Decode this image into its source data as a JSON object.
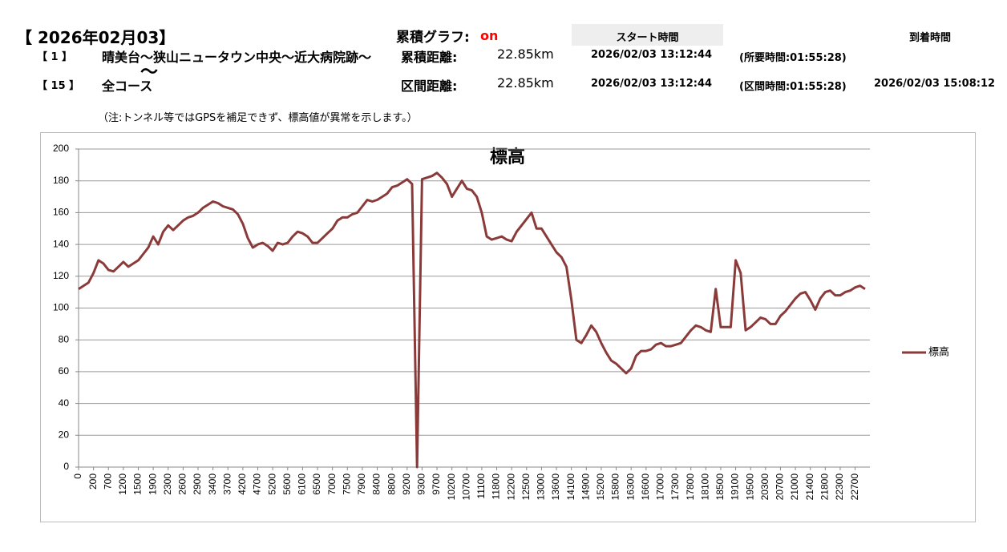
{
  "header": {
    "date": "【 2026年02月03】",
    "cumulative_graph_label": "累積グラフ:",
    "cumulative_graph_value": "on",
    "start_time_header": "スタート時間",
    "arrival_time_header": "到着時間"
  },
  "rows": [
    {
      "index": "【 1 】",
      "route": "晴美台～狭山ニュータウン中央～近大病院跡～",
      "distance_label": "累積距離:",
      "distance": "22.85km",
      "start": "2026/02/03 13:12:44",
      "duration": "(所要時間:01:55:28)"
    },
    {
      "index": "【 15 】",
      "route": "全コース",
      "distance_label": "区間距離:",
      "distance": "22.85km",
      "start": "2026/02/03 13:12:44",
      "duration": "(区間時間:01:55:28)",
      "arrival": "2026/02/03 15:08:12"
    }
  ],
  "route_continuation": "〜",
  "note": "（注:トンネル等ではGPSを補足できず、標高値が異常を示します。）",
  "chart_data": {
    "type": "line",
    "title": "標高",
    "categories": [
      "0",
      null,
      null,
      "200",
      null,
      null,
      "700",
      null,
      null,
      "1200",
      null,
      null,
      "1500",
      null,
      null,
      "1900",
      null,
      null,
      "2300",
      null,
      null,
      "2600",
      null,
      null,
      "2900",
      null,
      null,
      "3400",
      null,
      null,
      "3700",
      null,
      null,
      "4200",
      null,
      null,
      "4700",
      null,
      null,
      "5200",
      null,
      null,
      "5600",
      null,
      null,
      "6100",
      null,
      null,
      "6500",
      null,
      null,
      "7000",
      null,
      null,
      "7500",
      null,
      null,
      "7900",
      null,
      null,
      "8400",
      null,
      null,
      "8800",
      null,
      null,
      "9200",
      null,
      null,
      "9300",
      null,
      null,
      "9700",
      null,
      null,
      "10200",
      null,
      null,
      "10700",
      null,
      null,
      "11100",
      null,
      null,
      "11800",
      null,
      null,
      "12200",
      null,
      null,
      "12500",
      null,
      null,
      "13000",
      null,
      null,
      "13600",
      null,
      null,
      "14100",
      null,
      null,
      "14900",
      null,
      null,
      "15200",
      null,
      null,
      "15800",
      null,
      null,
      "16300",
      null,
      null,
      "16600",
      null,
      null,
      "17000",
      null,
      null,
      "17300",
      null,
      null,
      "17800",
      null,
      null,
      "18100",
      null,
      null,
      "18500",
      null,
      null,
      "19100",
      null,
      null,
      "19500",
      null,
      null,
      "20300",
      null,
      null,
      "20700",
      null,
      null,
      "21000",
      null,
      null,
      "21400",
      null,
      null,
      "21800",
      null,
      null,
      "22300",
      null,
      null,
      "22700",
      null,
      null
    ],
    "series": [
      {
        "name": "標高",
        "color": "#8b3a3a",
        "values": [
          112,
          114,
          116,
          122,
          130,
          128,
          124,
          123,
          126,
          129,
          126,
          128,
          130,
          134,
          138,
          145,
          140,
          148,
          152,
          149,
          152,
          155,
          157,
          158,
          160,
          163,
          165,
          167,
          166,
          164,
          163,
          162,
          159,
          153,
          144,
          138,
          140,
          141,
          139,
          136,
          141,
          140,
          141,
          145,
          148,
          147,
          145,
          141,
          141,
          144,
          147,
          150,
          155,
          157,
          157,
          159,
          160,
          164,
          168,
          167,
          168,
          170,
          172,
          176,
          177,
          179,
          181,
          178,
          0,
          181,
          182,
          183,
          185,
          182,
          178,
          170,
          175,
          180,
          175,
          174,
          170,
          160,
          145,
          143,
          144,
          145,
          143,
          142,
          148,
          152,
          156,
          160,
          150,
          150,
          145,
          140,
          135,
          132,
          126,
          105,
          80,
          78,
          83,
          89,
          85,
          78,
          72,
          67,
          65,
          62,
          59,
          62,
          70,
          73,
          73,
          74,
          77,
          78,
          76,
          76,
          77,
          78,
          82,
          86,
          89,
          88,
          86,
          85,
          112,
          88,
          88,
          88,
          130,
          122,
          86,
          88,
          91,
          94,
          93,
          90,
          90,
          95,
          98,
          102,
          106,
          109,
          110,
          105,
          99,
          106,
          110,
          111,
          108,
          108,
          110,
          111,
          113,
          114,
          112
        ]
      }
    ],
    "ylim": [
      0,
      200
    ],
    "yticks": [
      0,
      20,
      40,
      60,
      80,
      100,
      120,
      140,
      160,
      180,
      200
    ],
    "grid": true,
    "legend": "right"
  }
}
